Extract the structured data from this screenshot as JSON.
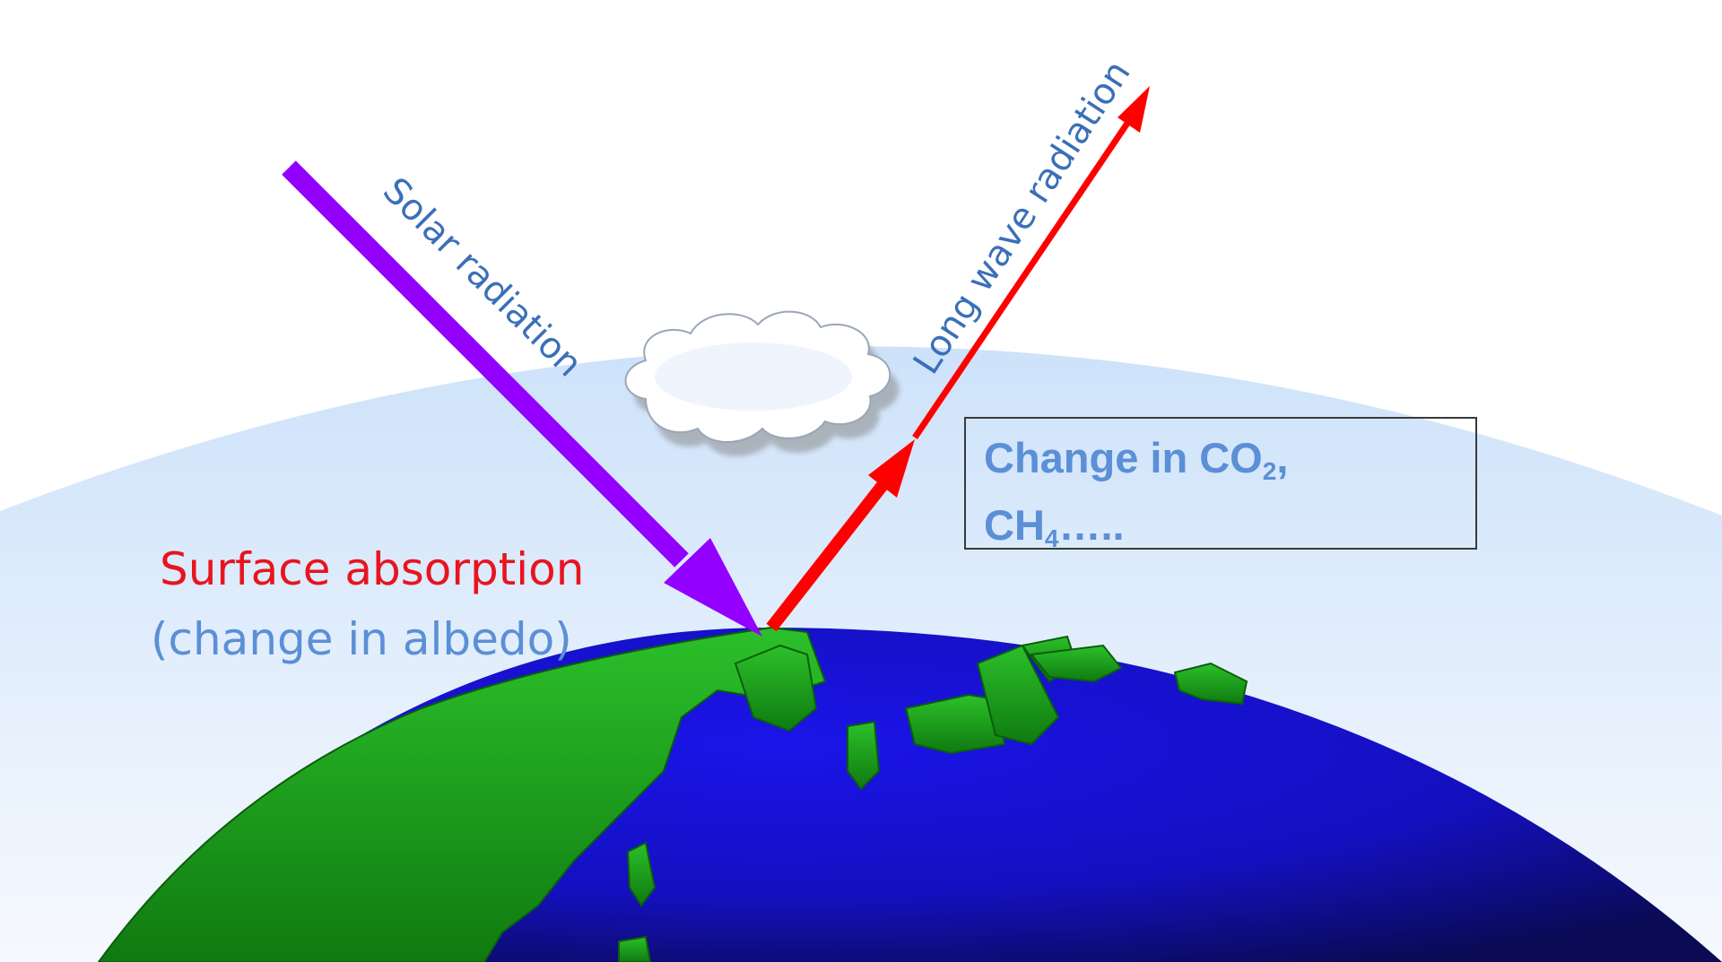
{
  "labels": {
    "solar_radiation": "Solar radiation",
    "long_wave_radiation": "Long wave radiation",
    "surface_absorption": "Surface absorption",
    "albedo_note": "(change in albedo)"
  },
  "gas_box": {
    "line1_prefix": "Change in CO",
    "line1_sub": "2",
    "line1_suffix": ",",
    "line2_prefix": "CH",
    "line2_sub": "4",
    "line2_suffix": "….."
  },
  "colors": {
    "solar_arrow": "#9400ff",
    "longwave_arrow": "#ff0000",
    "label_blue": "#3b6fb8",
    "absorption_red": "#e8141e",
    "albedo_blue": "#5b8fd6",
    "ocean": "#1410c0",
    "land": "#159a14",
    "atmosphere": "#cfe4fb"
  }
}
